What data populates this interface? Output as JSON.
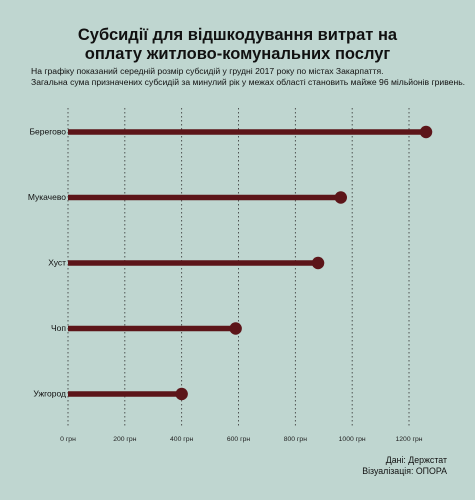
{
  "title_line1": "Субсидії для відшкодування витрат на",
  "title_line2": "оплату житлово-комунальних послуг",
  "subtitle_line1": "На графіку показаний середній розмір субсидій у грудні 2017 року по містах Закарпаття.",
  "subtitle_line2": "Загальна сума призначених субсидій за минулий рік у межах області становить майже 96 мільйонів гривень.",
  "source_data": "Дані: Держстат",
  "source_viz": "Візуалізація: ОПОРА",
  "colors": {
    "background": "#bfd6d0",
    "bar": "#5c1519",
    "gridline": "#333333"
  },
  "chart_data": {
    "type": "lollipop",
    "orientation": "horizontal",
    "categories": [
      "Берегово",
      "Мукачево",
      "Хуст",
      "Чоп",
      "Ужгород"
    ],
    "values": [
      1260,
      960,
      880,
      590,
      400
    ],
    "xlim": [
      0,
      1300
    ],
    "xticks": [
      0,
      200,
      400,
      600,
      800,
      1000,
      1200
    ],
    "xtick_labels": [
      "0 грн",
      "200 грн",
      "400 грн",
      "600 грн",
      "800 грн",
      "1000 грн",
      "1200 грн"
    ],
    "grid": "vertical dotted"
  }
}
